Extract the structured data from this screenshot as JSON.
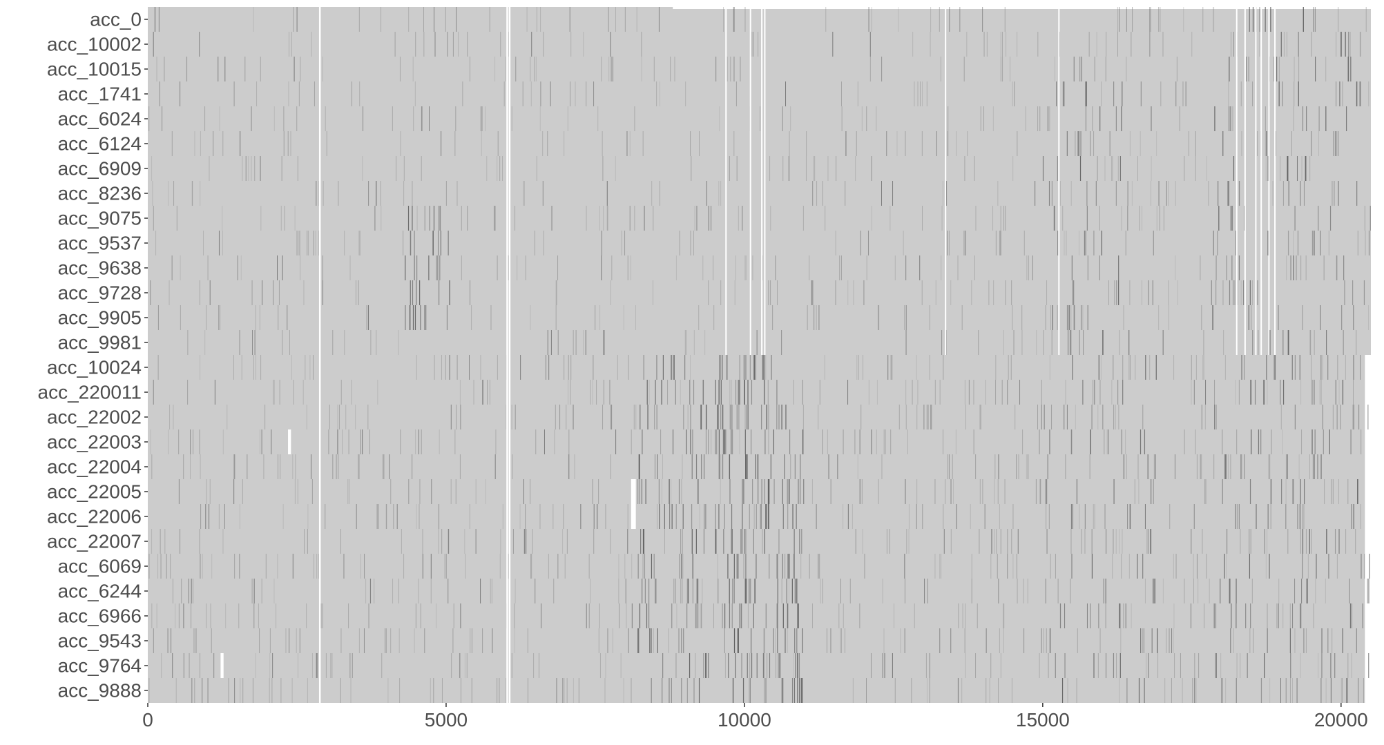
{
  "chart_data": {
    "type": "heatmap",
    "title": "",
    "xlabel": "",
    "ylabel": "",
    "xlim": [
      0,
      20500
    ],
    "x_ticks": [
      0,
      5000,
      10000,
      15000,
      20000
    ],
    "x_tick_labels": [
      "0",
      "5000",
      "10000",
      "15000",
      "20000"
    ],
    "rows": [
      "acc_0",
      "acc_10002",
      "acc_10015",
      "acc_1741",
      "acc_6024",
      "acc_6124",
      "acc_6909",
      "acc_8236",
      "acc_9075",
      "acc_9537",
      "acc_9638",
      "acc_9728",
      "acc_9905",
      "acc_9981",
      "acc_10024",
      "acc_220011",
      "acc_22002",
      "acc_22003",
      "acc_22004",
      "acc_22005",
      "acc_22006",
      "acc_22007",
      "acc_6069",
      "acc_6244",
      "acc_6966",
      "acc_9543",
      "acc_9764",
      "acc_9888"
    ],
    "colors": {
      "fill": "#cccccc",
      "dense_line": "#4a4a4a",
      "light_line": "#8a8a8a",
      "gap": "#ffffff",
      "axis_text": "#4d4d4d",
      "tick": "#333333"
    },
    "blocks": [
      {
        "rows": [
          0,
          13
        ],
        "x_end": 20500
      },
      {
        "rows": [
          14,
          27
        ],
        "x_end": 20400
      }
    ],
    "row0_x_end": 8800,
    "global_gaps": [
      2870,
      6010,
      6050
    ],
    "upper_block_gaps": [
      9680,
      10090,
      10280,
      10330,
      13360,
      15260,
      18240,
      18380,
      18560,
      18650,
      18780,
      18880
    ],
    "dense_regions": [
      {
        "x_start": 9500,
        "x_end": 11000,
        "rows": [
          14,
          27
        ],
        "density": "high"
      },
      {
        "x_start": 8200,
        "x_end": 9400,
        "rows": [
          14,
          27
        ],
        "density": "medium"
      },
      {
        "x_start": 4300,
        "x_end": 5100,
        "rows": [
          8,
          12
        ],
        "density": "medium"
      },
      {
        "x_start": 17800,
        "x_end": 20500,
        "rows": [
          0,
          27
        ],
        "density": "medium"
      },
      {
        "x_start": 15000,
        "x_end": 17000,
        "rows": [
          2,
          27
        ],
        "density": "low"
      }
    ],
    "white_patches": [
      {
        "x_start": 2350,
        "x_end": 2400,
        "row": 17
      },
      {
        "x_start": 8100,
        "x_end": 8180,
        "row": 19
      },
      {
        "x_start": 8100,
        "x_end": 8180,
        "row": 20
      },
      {
        "x_start": 1220,
        "x_end": 1270,
        "row": 26
      }
    ]
  }
}
